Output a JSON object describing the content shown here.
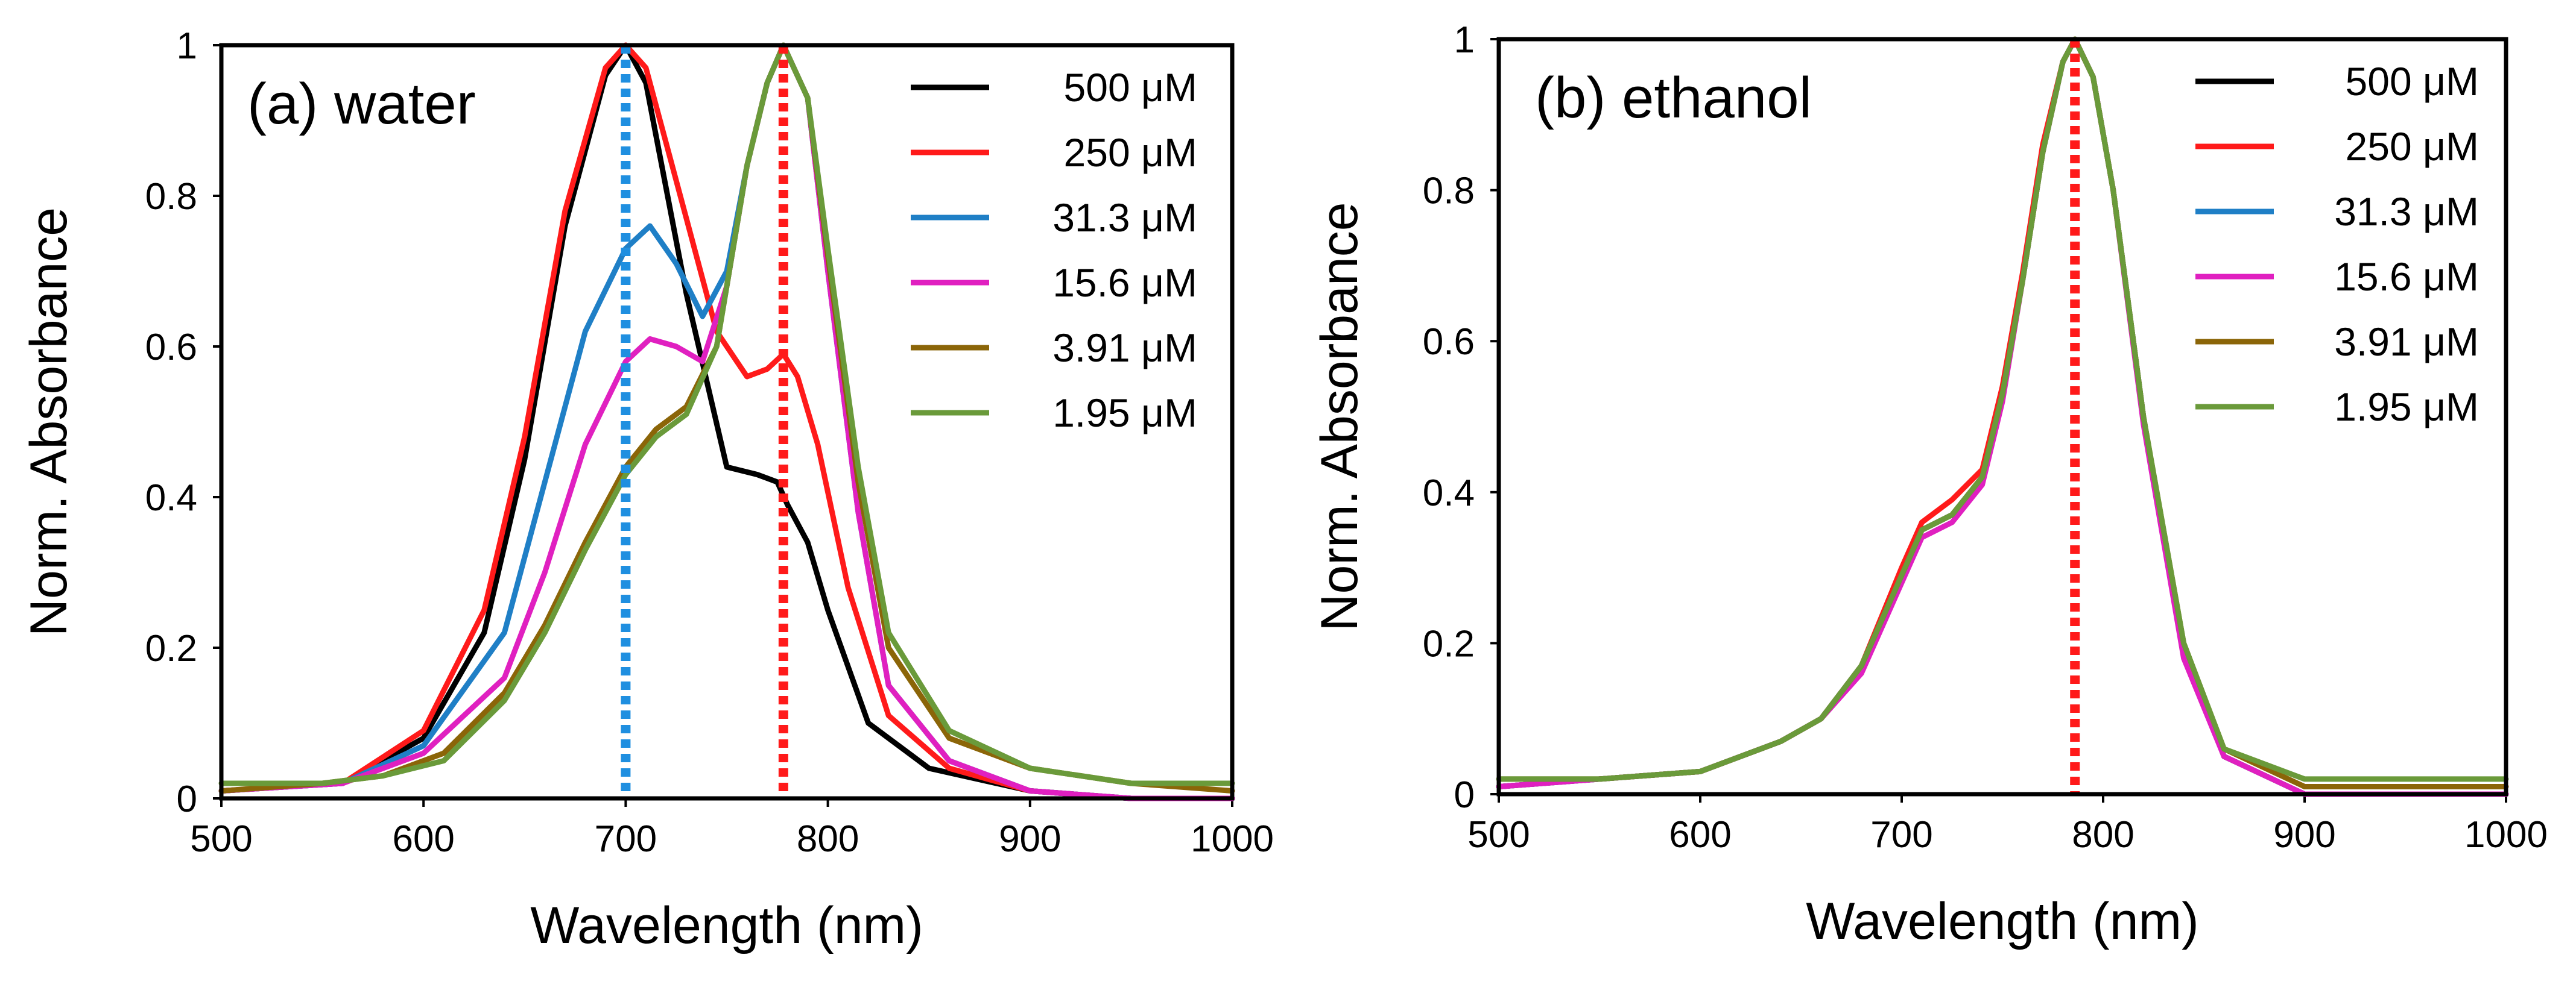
{
  "chart_data": [
    {
      "type": "line",
      "id": "water",
      "title": "(a) water",
      "xlabel": "Wavelength (nm)",
      "ylabel": "Norm. Absorbance",
      "xlim": [
        500,
        1000
      ],
      "ylim": [
        0,
        1
      ],
      "xticks": [
        "500",
        "600",
        "700",
        "800",
        "900",
        "1000"
      ],
      "yticks": [
        "0",
        "0.2",
        "0.4",
        "0.6",
        "0.8",
        "1"
      ],
      "reference_lines": [
        {
          "x": 700,
          "color": "#1f8fe0",
          "style": "dotted"
        },
        {
          "x": 778,
          "color": "#ff1a1a",
          "style": "dotted"
        }
      ],
      "series": [
        {
          "name": "500 μM",
          "color": "#000000",
          "x": [
            500,
            560,
            600,
            630,
            650,
            670,
            690,
            700,
            710,
            730,
            750,
            765,
            775,
            780,
            790,
            800,
            820,
            850,
            900,
            950,
            1000
          ],
          "values": [
            0.01,
            0.02,
            0.08,
            0.22,
            0.45,
            0.76,
            0.96,
            1.0,
            0.95,
            0.67,
            0.44,
            0.43,
            0.42,
            0.39,
            0.34,
            0.25,
            0.1,
            0.04,
            0.01,
            0.0,
            0.0
          ]
        },
        {
          "name": "250 μM",
          "color": "#ff1a1a",
          "x": [
            500,
            560,
            600,
            630,
            650,
            670,
            690,
            700,
            710,
            730,
            745,
            760,
            770,
            778,
            785,
            795,
            810,
            830,
            860,
            900,
            950,
            1000
          ],
          "values": [
            0.01,
            0.02,
            0.09,
            0.25,
            0.48,
            0.78,
            0.97,
            1.0,
            0.97,
            0.77,
            0.62,
            0.56,
            0.57,
            0.59,
            0.56,
            0.47,
            0.28,
            0.11,
            0.04,
            0.01,
            0.0,
            0.0
          ]
        },
        {
          "name": "31.3 μM",
          "color": "#1f7fc6",
          "x": [
            500,
            560,
            600,
            640,
            660,
            680,
            700,
            712,
            725,
            738,
            750,
            760,
            770,
            778,
            790,
            800,
            815,
            830,
            860,
            900,
            950,
            1000
          ],
          "values": [
            0.01,
            0.02,
            0.07,
            0.22,
            0.42,
            0.62,
            0.73,
            0.76,
            0.71,
            0.64,
            0.7,
            0.84,
            0.95,
            1.0,
            0.93,
            0.7,
            0.38,
            0.15,
            0.05,
            0.01,
            0.0,
            0.0
          ]
        },
        {
          "name": "15.6 μM",
          "color": "#e020c0",
          "x": [
            500,
            560,
            600,
            640,
            660,
            680,
            700,
            712,
            725,
            738,
            750,
            760,
            770,
            778,
            790,
            800,
            815,
            830,
            860,
            900,
            950,
            1000
          ],
          "values": [
            0.01,
            0.02,
            0.06,
            0.16,
            0.3,
            0.47,
            0.58,
            0.61,
            0.6,
            0.58,
            0.68,
            0.84,
            0.95,
            1.0,
            0.93,
            0.7,
            0.38,
            0.15,
            0.05,
            0.01,
            0.0,
            0.0
          ]
        },
        {
          "name": "3.91 μM",
          "color": "#8b6508",
          "x": [
            500,
            550,
            580,
            610,
            640,
            660,
            680,
            700,
            715,
            730,
            745,
            760,
            770,
            778,
            790,
            800,
            815,
            830,
            860,
            900,
            950,
            1000
          ],
          "values": [
            0.01,
            0.02,
            0.03,
            0.06,
            0.14,
            0.23,
            0.34,
            0.44,
            0.49,
            0.52,
            0.6,
            0.84,
            0.95,
            1.0,
            0.93,
            0.72,
            0.42,
            0.2,
            0.08,
            0.04,
            0.02,
            0.01
          ]
        },
        {
          "name": "1.95 μM",
          "color": "#6a9a3a",
          "x": [
            500,
            550,
            580,
            610,
            640,
            660,
            680,
            700,
            715,
            730,
            745,
            760,
            770,
            778,
            790,
            800,
            815,
            830,
            860,
            900,
            950,
            1000
          ],
          "values": [
            0.02,
            0.02,
            0.03,
            0.05,
            0.13,
            0.22,
            0.33,
            0.43,
            0.48,
            0.51,
            0.6,
            0.84,
            0.95,
            1.0,
            0.93,
            0.73,
            0.44,
            0.22,
            0.09,
            0.04,
            0.02,
            0.02
          ]
        }
      ]
    },
    {
      "type": "line",
      "id": "ethanol",
      "title": "(b) ethanol",
      "xlabel": "Wavelength (nm)",
      "ylabel": "Norm. Absorbance",
      "xlim": [
        500,
        1000
      ],
      "ylim": [
        0,
        1
      ],
      "xticks": [
        "500",
        "600",
        "700",
        "800",
        "900",
        "1000"
      ],
      "yticks": [
        "0",
        "0.2",
        "0.4",
        "0.6",
        "0.8",
        "1"
      ],
      "reference_lines": [
        {
          "x": 786,
          "color": "#ff1a1a",
          "style": "dotted"
        }
      ],
      "series": [
        {
          "name": "500 μM",
          "color": "#000000",
          "x": [
            500,
            550,
            600,
            640,
            660,
            680,
            700,
            710,
            725,
            740,
            750,
            760,
            770,
            780,
            786,
            795,
            805,
            820,
            840,
            860,
            900,
            950,
            1000
          ],
          "values": [
            0.01,
            0.02,
            0.03,
            0.07,
            0.1,
            0.17,
            0.29,
            0.35,
            0.37,
            0.42,
            0.53,
            0.68,
            0.85,
            0.97,
            1.0,
            0.95,
            0.8,
            0.5,
            0.19,
            0.05,
            0.0,
            0.0,
            0.0
          ]
        },
        {
          "name": "250 μM",
          "color": "#ff1a1a",
          "x": [
            500,
            550,
            600,
            640,
            660,
            680,
            700,
            710,
            725,
            740,
            750,
            760,
            770,
            780,
            786,
            795,
            805,
            820,
            840,
            860,
            900,
            950,
            1000
          ],
          "values": [
            0.01,
            0.02,
            0.03,
            0.07,
            0.1,
            0.17,
            0.3,
            0.36,
            0.39,
            0.43,
            0.54,
            0.69,
            0.86,
            0.97,
            1.0,
            0.95,
            0.8,
            0.5,
            0.19,
            0.05,
            0.0,
            0.0,
            0.0
          ]
        },
        {
          "name": "31.3 μM",
          "color": "#1f7fc6",
          "x": [
            500,
            550,
            600,
            640,
            660,
            680,
            700,
            710,
            725,
            740,
            750,
            760,
            770,
            780,
            786,
            795,
            805,
            820,
            840,
            860,
            900,
            950,
            1000
          ],
          "values": [
            0.01,
            0.02,
            0.03,
            0.07,
            0.1,
            0.17,
            0.29,
            0.35,
            0.37,
            0.42,
            0.53,
            0.68,
            0.85,
            0.97,
            1.0,
            0.95,
            0.8,
            0.5,
            0.19,
            0.05,
            0.0,
            0.0,
            0.0
          ]
        },
        {
          "name": "15.6 μM",
          "color": "#e020c0",
          "x": [
            500,
            550,
            600,
            640,
            660,
            680,
            700,
            710,
            725,
            740,
            750,
            760,
            770,
            780,
            786,
            795,
            805,
            820,
            840,
            860,
            900,
            950,
            1000
          ],
          "values": [
            0.01,
            0.02,
            0.03,
            0.07,
            0.1,
            0.16,
            0.28,
            0.34,
            0.36,
            0.41,
            0.52,
            0.68,
            0.85,
            0.97,
            1.0,
            0.95,
            0.8,
            0.49,
            0.18,
            0.05,
            0.0,
            0.0,
            0.0
          ]
        },
        {
          "name": "3.91 μM",
          "color": "#8b6508",
          "x": [
            500,
            550,
            600,
            640,
            660,
            680,
            700,
            710,
            725,
            740,
            750,
            760,
            770,
            780,
            786,
            795,
            805,
            820,
            840,
            860,
            900,
            950,
            1000
          ],
          "values": [
            0.02,
            0.02,
            0.03,
            0.07,
            0.1,
            0.17,
            0.29,
            0.35,
            0.37,
            0.42,
            0.53,
            0.68,
            0.85,
            0.97,
            1.0,
            0.95,
            0.8,
            0.5,
            0.2,
            0.06,
            0.01,
            0.01,
            0.01
          ]
        },
        {
          "name": "1.95 μM",
          "color": "#6a9a3a",
          "x": [
            500,
            550,
            600,
            640,
            660,
            680,
            700,
            710,
            725,
            740,
            750,
            760,
            770,
            780,
            786,
            795,
            805,
            820,
            840,
            860,
            900,
            950,
            1000
          ],
          "values": [
            0.02,
            0.02,
            0.03,
            0.07,
            0.1,
            0.17,
            0.29,
            0.35,
            0.37,
            0.42,
            0.53,
            0.68,
            0.85,
            0.97,
            1.0,
            0.95,
            0.8,
            0.5,
            0.2,
            0.06,
            0.02,
            0.02,
            0.02
          ]
        }
      ]
    }
  ]
}
